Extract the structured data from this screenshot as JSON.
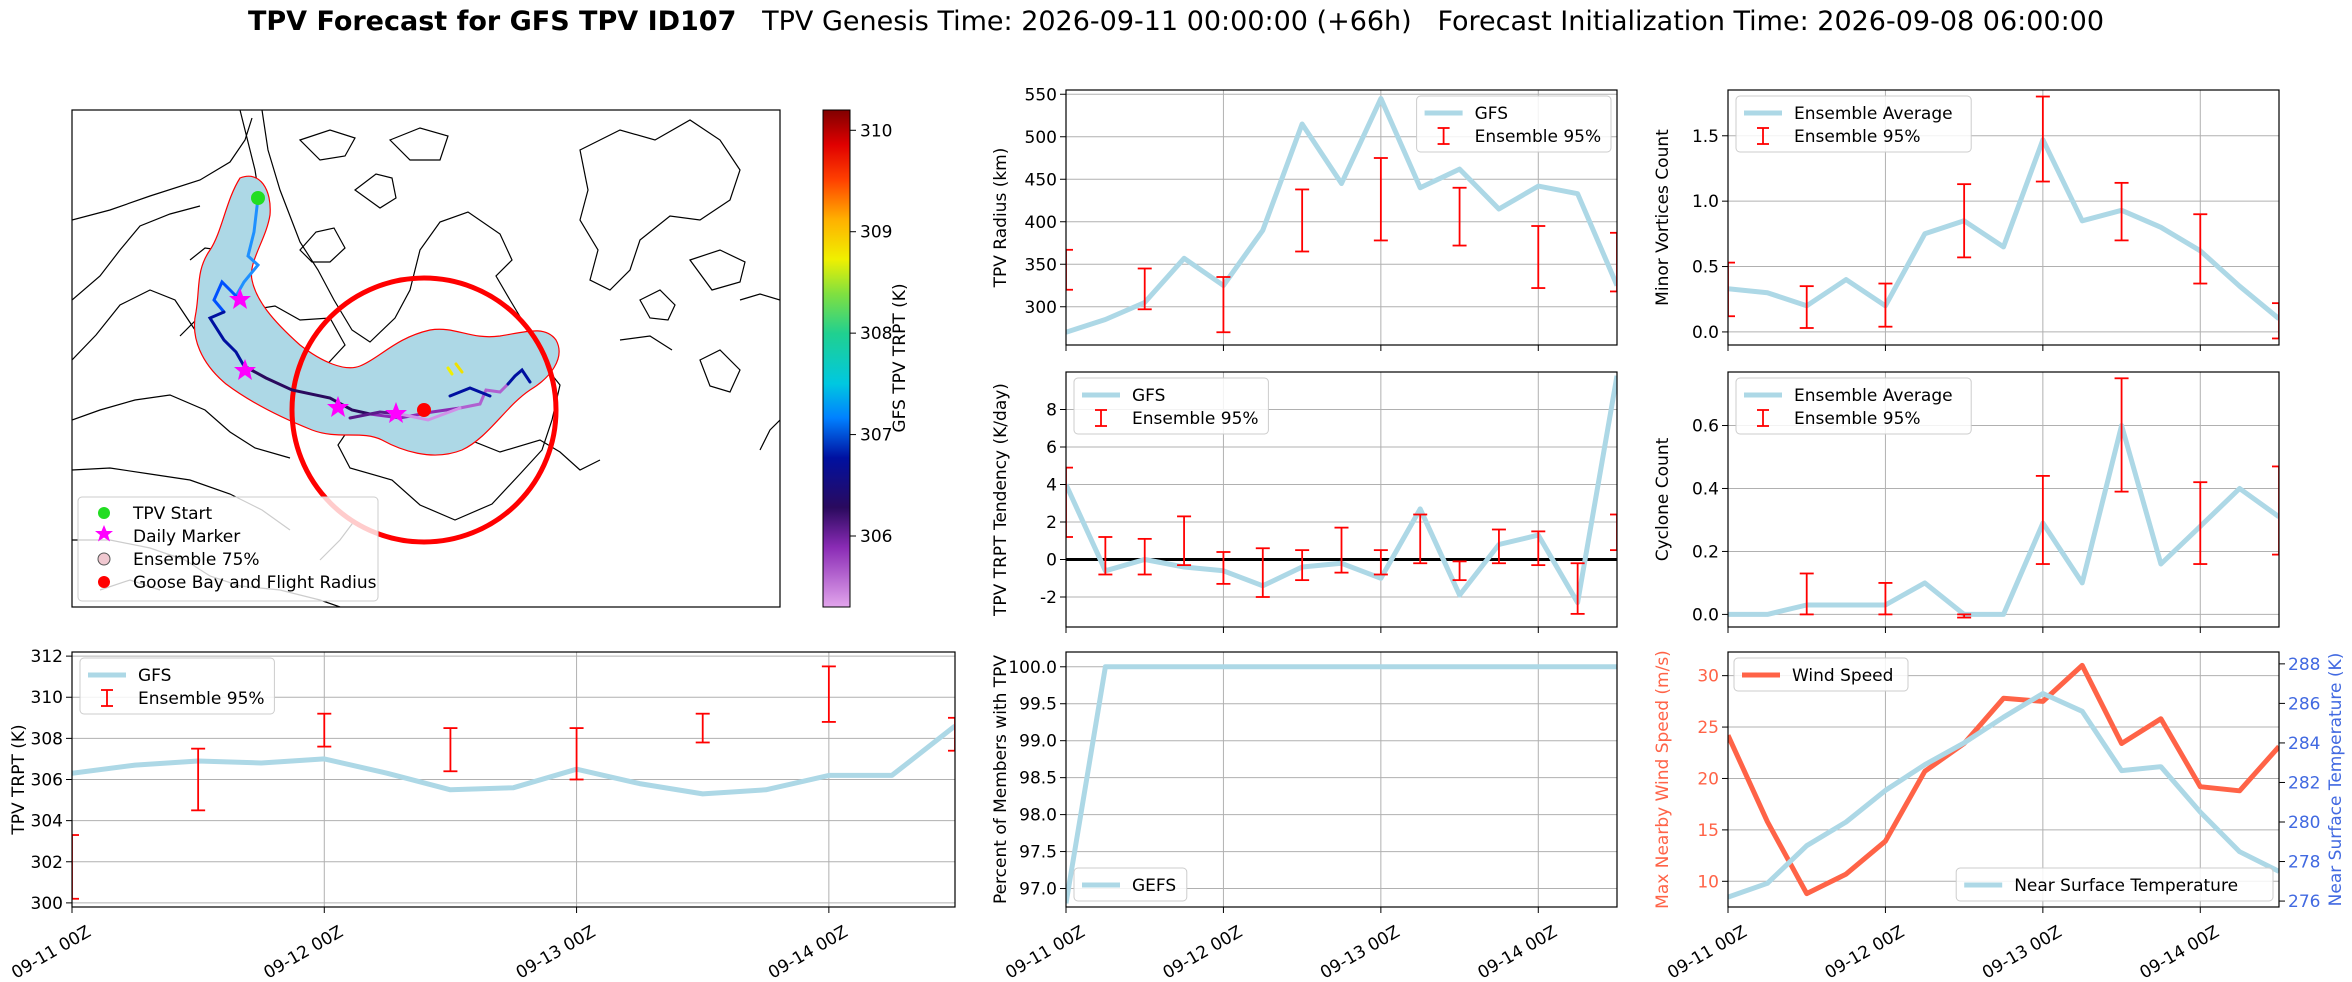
{
  "title": {
    "main": "TPV Forecast for GFS TPV ID107",
    "genesis": "TPV Genesis Time: 2026-09-11 00:00:00 (+66h)",
    "init": "Forecast Initialization Time: 2026-09-08 06:00:00"
  },
  "colors": {
    "gfs_line": "#add8e6",
    "errorbar": "#ff0000",
    "wind": "#ff6347",
    "temp_axis": "#4169e1",
    "track_fill": "#add8e6",
    "flight_circle": "#ff0000"
  },
  "time_ticks": [
    "09-11 00Z",
    "09-12 00Z",
    "09-13 00Z",
    "09-14 00Z"
  ],
  "map": {
    "colorbar_label": "GFS TPV TRPT (K)",
    "colorbar_ticks": [
      306,
      307,
      308,
      309,
      310
    ],
    "colorbar_range": [
      305.3,
      310.2
    ],
    "legend": [
      {
        "label": "TPV Start",
        "icon": "green-circle"
      },
      {
        "label": "Daily Marker",
        "icon": "magenta-star"
      },
      {
        "label": "Ensemble 75%",
        "icon": "lightblue-circle"
      },
      {
        "label": "Goose Bay and Flight Radius",
        "icon": "red-circle"
      }
    ]
  },
  "chart_data": [
    {
      "id": "trpt",
      "type": "line",
      "ylabel": "TPV TRPT (K)",
      "ylim": [
        299.8,
        312.2
      ],
      "xlim": [
        0,
        3.5
      ],
      "yticks": [
        300,
        302,
        304,
        306,
        308,
        310,
        312
      ],
      "grid": true,
      "legend_position": "top-left",
      "legend": [
        "GFS",
        "Ensemble 95%"
      ],
      "series": [
        {
          "name": "GFS",
          "x": [
            0,
            0.25,
            0.5,
            0.75,
            1,
            1.25,
            1.5,
            1.75,
            2,
            2.25,
            2.5,
            2.75,
            3,
            3.25,
            3.5
          ],
          "y": [
            306.3,
            306.7,
            306.9,
            306.8,
            307.0,
            306.3,
            305.5,
            305.6,
            306.5,
            305.8,
            305.3,
            305.5,
            306.2,
            306.2,
            308.6
          ]
        }
      ],
      "errorbars": [
        {
          "x": 0,
          "low": 300.2,
          "high": 303.3
        },
        {
          "x": 0.5,
          "low": 304.5,
          "high": 307.5
        },
        {
          "x": 1,
          "low": 307.6,
          "high": 309.2
        },
        {
          "x": 1.5,
          "low": 306.4,
          "high": 308.5
        },
        {
          "x": 2,
          "low": 306.0,
          "high": 308.5
        },
        {
          "x": 2.5,
          "low": 307.8,
          "high": 309.2
        },
        {
          "x": 3,
          "low": 308.8,
          "high": 311.5
        },
        {
          "x": 3.5,
          "low": 307.4,
          "high": 309.0
        }
      ]
    },
    {
      "id": "radius",
      "type": "line",
      "ylabel": "TPV Radius (km)",
      "ylim": [
        255,
        555
      ],
      "xlim": [
        0,
        3.5
      ],
      "yticks": [
        300,
        350,
        400,
        450,
        500,
        550
      ],
      "grid": true,
      "legend_position": "top-right",
      "legend": [
        "GFS",
        "Ensemble 95%"
      ],
      "series": [
        {
          "name": "GFS",
          "x": [
            0,
            0.25,
            0.5,
            0.75,
            1,
            1.25,
            1.5,
            1.75,
            2,
            2.25,
            2.5,
            2.75,
            3,
            3.25,
            3.5
          ],
          "y": [
            270,
            285,
            305,
            357,
            325,
            390,
            515,
            445,
            545,
            440,
            462,
            415,
            442,
            433,
            325
          ]
        }
      ],
      "errorbars": [
        {
          "x": 0,
          "low": 320,
          "high": 367
        },
        {
          "x": 0.5,
          "low": 297,
          "high": 345
        },
        {
          "x": 1,
          "low": 270,
          "high": 335
        },
        {
          "x": 1.5,
          "low": 365,
          "high": 438
        },
        {
          "x": 2,
          "low": 378,
          "high": 475
        },
        {
          "x": 2.5,
          "low": 372,
          "high": 440
        },
        {
          "x": 3,
          "low": 322,
          "high": 395
        },
        {
          "x": 3.5,
          "low": 318,
          "high": 387
        }
      ]
    },
    {
      "id": "tendency",
      "type": "line",
      "ylabel": "TPV TRPT Tendency (K/day)",
      "ylim": [
        -3.6,
        10.0
      ],
      "xlim": [
        0,
        3.5
      ],
      "yticks": [
        -2,
        0,
        2,
        4,
        6,
        8
      ],
      "zero_line": true,
      "grid": true,
      "legend_position": "top-left",
      "legend": [
        "GFS",
        "Ensemble 95%"
      ],
      "series": [
        {
          "name": "GFS",
          "x": [
            0,
            0.25,
            0.5,
            0.75,
            1,
            1.25,
            1.5,
            1.75,
            2,
            2.25,
            2.5,
            2.75,
            3,
            3.25,
            3.5
          ],
          "y": [
            4.0,
            -0.6,
            0.0,
            -0.4,
            -0.6,
            -1.4,
            -0.4,
            -0.2,
            -1.0,
            2.7,
            -1.9,
            0.8,
            1.3,
            -2.3,
            9.8
          ]
        }
      ],
      "errorbars": [
        {
          "x": 0,
          "low": 1.2,
          "high": 4.9
        },
        {
          "x": 0.25,
          "low": -0.8,
          "high": 1.2
        },
        {
          "x": 0.5,
          "low": -0.8,
          "high": 1.1
        },
        {
          "x": 0.75,
          "low": -0.3,
          "high": 2.3
        },
        {
          "x": 1,
          "low": -1.3,
          "high": 0.4
        },
        {
          "x": 1.25,
          "low": -2.0,
          "high": 0.6
        },
        {
          "x": 1.5,
          "low": -1.1,
          "high": 0.5
        },
        {
          "x": 1.75,
          "low": -0.7,
          "high": 1.7
        },
        {
          "x": 2,
          "low": -0.8,
          "high": 0.5
        },
        {
          "x": 2.25,
          "low": -0.2,
          "high": 2.4
        },
        {
          "x": 2.5,
          "low": -1.1,
          "high": -0.1
        },
        {
          "x": 2.75,
          "low": -0.2,
          "high": 1.6
        },
        {
          "x": 3,
          "low": -0.3,
          "high": 1.5
        },
        {
          "x": 3.25,
          "low": -2.9,
          "high": -0.2
        },
        {
          "x": 3.5,
          "low": 0.5,
          "high": 2.4
        }
      ]
    },
    {
      "id": "members",
      "type": "line",
      "ylabel": "Percent of Members with TPV",
      "ylim": [
        96.75,
        100.2
      ],
      "xlim": [
        0,
        3.5
      ],
      "yticks": [
        97.0,
        97.5,
        98.0,
        98.5,
        99.0,
        99.5,
        100.0
      ],
      "tick_decimals": 1,
      "grid": true,
      "legend_position": "bottom-left",
      "legend": [
        "GEFS"
      ],
      "series": [
        {
          "name": "GEFS",
          "x": [
            0,
            0.25,
            0.5,
            0.75,
            1,
            1.25,
            1.5,
            1.75,
            2,
            2.25,
            2.5,
            2.75,
            3,
            3.25,
            3.5
          ],
          "y": [
            96.8,
            100,
            100,
            100,
            100,
            100,
            100,
            100,
            100,
            100,
            100,
            100,
            100,
            100,
            100
          ]
        }
      ],
      "errorbars": []
    },
    {
      "id": "minor",
      "type": "line",
      "ylabel": "Minor Vortices Count",
      "ylim": [
        -0.1,
        1.85
      ],
      "xlim": [
        0,
        3.5
      ],
      "yticks": [
        0.0,
        0.5,
        1.0,
        1.5
      ],
      "tick_decimals": 1,
      "grid": true,
      "legend_position": "top-left",
      "legend": [
        "Ensemble Average",
        "Ensemble 95%"
      ],
      "series": [
        {
          "name": "Ensemble Average",
          "x": [
            0,
            0.25,
            0.5,
            0.75,
            1,
            1.25,
            1.5,
            1.75,
            2,
            2.25,
            2.5,
            2.75,
            3,
            3.25,
            3.5
          ],
          "y": [
            0.33,
            0.3,
            0.2,
            0.4,
            0.2,
            0.75,
            0.85,
            0.65,
            1.47,
            0.85,
            0.93,
            0.8,
            0.62,
            0.35,
            0.1
          ]
        }
      ],
      "errorbars": [
        {
          "x": 0,
          "low": 0.12,
          "high": 0.53
        },
        {
          "x": 0.5,
          "low": 0.03,
          "high": 0.35
        },
        {
          "x": 1,
          "low": 0.04,
          "high": 0.37
        },
        {
          "x": 1.5,
          "low": 0.57,
          "high": 1.13
        },
        {
          "x": 2,
          "low": 1.15,
          "high": 1.8
        },
        {
          "x": 2.5,
          "low": 0.7,
          "high": 1.14
        },
        {
          "x": 3,
          "low": 0.37,
          "high": 0.9
        },
        {
          "x": 3.5,
          "low": -0.05,
          "high": 0.22
        }
      ]
    },
    {
      "id": "cyclone",
      "type": "line",
      "ylabel": "Cyclone Count",
      "ylim": [
        -0.04,
        0.77
      ],
      "xlim": [
        0,
        3.5
      ],
      "yticks": [
        0.0,
        0.2,
        0.4,
        0.6
      ],
      "tick_decimals": 1,
      "grid": true,
      "legend_position": "top-left",
      "legend": [
        "Ensemble Average",
        "Ensemble 95%"
      ],
      "series": [
        {
          "name": "Ensemble Average",
          "x": [
            0,
            0.25,
            0.5,
            0.75,
            1,
            1.25,
            1.5,
            1.75,
            2,
            2.25,
            2.5,
            2.75,
            3,
            3.25,
            3.5
          ],
          "y": [
            0,
            0,
            0.03,
            0.03,
            0.03,
            0.1,
            0,
            0,
            0.29,
            0.1,
            0.6,
            0.16,
            0.28,
            0.4,
            0.31
          ]
        }
      ],
      "errorbars": [
        {
          "x": 0.5,
          "low": 0.0,
          "high": 0.13
        },
        {
          "x": 1,
          "low": 0.0,
          "high": 0.1
        },
        {
          "x": 1.5,
          "low": -0.01,
          "high": 0.0
        },
        {
          "x": 2,
          "low": 0.16,
          "high": 0.44
        },
        {
          "x": 2.5,
          "low": 0.39,
          "high": 0.75
        },
        {
          "x": 3,
          "low": 0.16,
          "high": 0.42
        },
        {
          "x": 3.5,
          "low": 0.19,
          "high": 0.47
        }
      ]
    },
    {
      "id": "wind_temp",
      "type": "line",
      "ylabel": "Max Nearby Wind Speed (m/s)",
      "ylabel_right": "Near Surface Temperature (K)",
      "ylim": [
        7.5,
        32.3
      ],
      "ylim_right": [
        275.7,
        288.6
      ],
      "xlim": [
        0,
        3.5
      ],
      "yticks": [
        10,
        15,
        20,
        25,
        30
      ],
      "yticks_right": [
        276,
        278,
        280,
        282,
        284,
        286,
        288
      ],
      "grid": true,
      "legend": [
        "Wind Speed",
        "Near Surface Temperature"
      ],
      "legend_position": "top-left / bottom-right",
      "series": [
        {
          "name": "Wind Speed",
          "axis": "left",
          "x": [
            0,
            0.25,
            0.5,
            0.75,
            1,
            1.25,
            1.5,
            1.75,
            2,
            2.25,
            2.5,
            2.75,
            3,
            3.25,
            3.5
          ],
          "y": [
            24.2,
            15.8,
            8.8,
            10.7,
            13.9,
            20.7,
            23.4,
            27.8,
            27.5,
            31.0,
            23.4,
            25.8,
            19.2,
            18.8,
            23.1
          ]
        },
        {
          "name": "Near Surface Temperature",
          "axis": "right",
          "x": [
            0,
            0.25,
            0.5,
            0.75,
            1,
            1.25,
            1.5,
            1.75,
            2,
            2.25,
            2.5,
            2.75,
            3,
            3.25,
            3.5
          ],
          "y": [
            276.2,
            276.9,
            278.8,
            280.0,
            281.6,
            282.9,
            284.0,
            285.3,
            286.5,
            285.6,
            282.6,
            282.8,
            280.5,
            278.5,
            277.5
          ]
        }
      ],
      "errorbars": []
    }
  ]
}
